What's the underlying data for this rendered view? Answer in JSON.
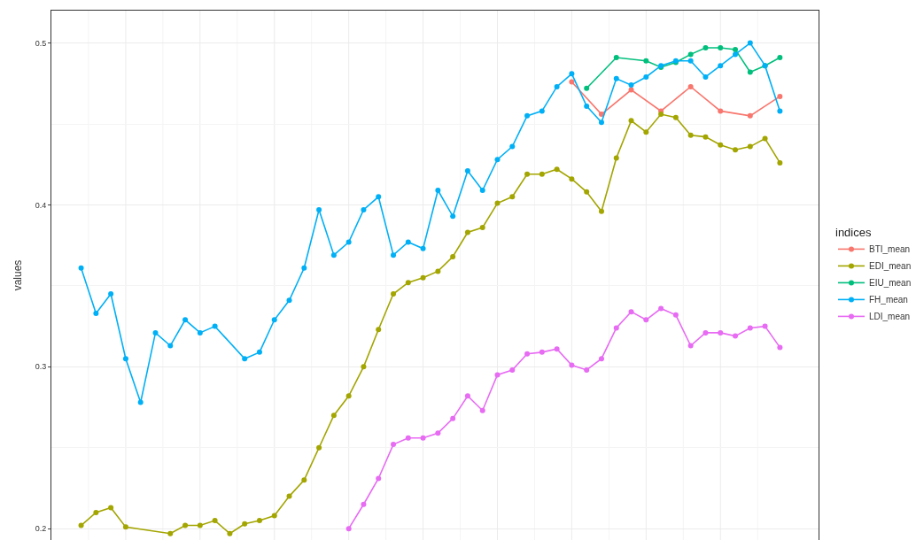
{
  "chart_data": {
    "type": "line",
    "ylabel": "values",
    "legend_title": "indices",
    "legend": "right",
    "grid": true,
    "marker": "circle",
    "line_style": "solid",
    "ylim": [
      0.193,
      0.52
    ],
    "yticks": [
      0.2,
      0.3,
      0.4,
      0.5
    ],
    "categories": [
      null,
      null,
      null,
      null,
      null,
      null,
      null,
      null,
      null,
      null,
      null,
      null,
      null,
      null,
      null,
      null,
      null,
      null,
      null,
      null,
      null,
      null,
      null,
      null,
      null,
      null,
      null,
      null,
      null,
      null,
      null,
      null,
      null,
      null,
      null,
      null,
      null,
      null,
      null,
      null,
      null,
      null,
      null,
      null,
      null,
      null,
      null,
      null
    ],
    "series": [
      {
        "name": "BTI_mean",
        "color": "#f8766d",
        "values": [
          null,
          null,
          null,
          null,
          null,
          null,
          null,
          null,
          null,
          null,
          null,
          null,
          null,
          null,
          null,
          null,
          null,
          null,
          null,
          null,
          null,
          null,
          null,
          null,
          null,
          null,
          null,
          null,
          null,
          null,
          null,
          null,
          null,
          0.476,
          null,
          0.456,
          null,
          0.471,
          null,
          0.458,
          null,
          0.473,
          null,
          0.458,
          null,
          0.455,
          null,
          0.467
        ]
      },
      {
        "name": "EDI_mean",
        "color": "#a3a500",
        "values": [
          0.202,
          0.21,
          0.213,
          0.201,
          null,
          null,
          0.197,
          0.202,
          0.202,
          0.205,
          0.197,
          0.203,
          0.205,
          0.208,
          0.22,
          0.23,
          0.25,
          0.27,
          0.282,
          0.3,
          0.323,
          0.345,
          0.352,
          0.355,
          0.359,
          0.368,
          0.383,
          0.386,
          0.401,
          0.405,
          0.419,
          0.419,
          0.422,
          0.416,
          0.408,
          0.396,
          0.429,
          0.452,
          0.445,
          0.456,
          0.454,
          0.443,
          0.442,
          0.437,
          0.434,
          0.436,
          0.441,
          0.426
        ]
      },
      {
        "name": "EIU_mean",
        "color": "#00bf7d",
        "values": [
          null,
          null,
          null,
          null,
          null,
          null,
          null,
          null,
          null,
          null,
          null,
          null,
          null,
          null,
          null,
          null,
          null,
          null,
          null,
          null,
          null,
          null,
          null,
          null,
          null,
          null,
          null,
          null,
          null,
          null,
          null,
          null,
          null,
          null,
          0.472,
          null,
          0.491,
          null,
          0.489,
          0.485,
          0.488,
          0.493,
          0.497,
          0.497,
          0.496,
          0.482,
          0.486,
          0.491
        ]
      },
      {
        "name": "FH_mean",
        "color": "#00b0f6",
        "values": [
          0.361,
          0.333,
          0.345,
          0.305,
          0.278,
          0.321,
          0.313,
          0.329,
          0.321,
          0.325,
          null,
          0.305,
          0.309,
          0.329,
          0.341,
          0.361,
          0.397,
          0.369,
          0.377,
          0.397,
          0.405,
          0.369,
          0.377,
          0.373,
          0.409,
          0.393,
          0.421,
          0.409,
          0.428,
          0.436,
          0.455,
          0.458,
          0.473,
          0.481,
          0.461,
          0.451,
          0.478,
          0.474,
          0.479,
          0.486,
          0.489,
          0.489,
          0.479,
          0.486,
          0.493,
          0.5,
          0.486,
          0.458
        ]
      },
      {
        "name": "LDI_mean",
        "color": "#e76bf3",
        "values": [
          null,
          null,
          null,
          null,
          null,
          null,
          null,
          null,
          null,
          null,
          null,
          null,
          null,
          null,
          null,
          null,
          null,
          null,
          0.2,
          0.215,
          0.231,
          0.252,
          0.256,
          0.256,
          0.259,
          0.268,
          0.282,
          0.273,
          0.295,
          0.298,
          0.308,
          0.309,
          0.311,
          0.301,
          0.298,
          0.305,
          0.324,
          0.334,
          0.329,
          0.336,
          0.332,
          0.313,
          0.321,
          0.321,
          0.319,
          0.324,
          0.325,
          0.312
        ]
      }
    ]
  }
}
